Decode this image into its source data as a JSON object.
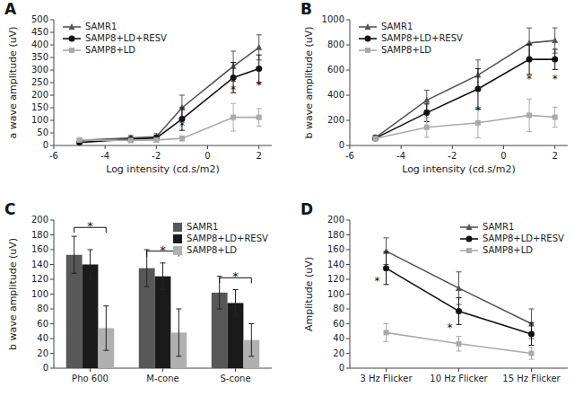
{
  "chart_data": [
    {
      "type": "line",
      "title": "A",
      "x": [
        -5,
        -3,
        -2,
        -1,
        1,
        2
      ],
      "series": [
        {
          "name": "SAMR1",
          "color": "#555555",
          "marker": "triangle",
          "values": [
            20,
            30,
            35,
            150,
            315,
            390
          ],
          "errors": [
            8,
            10,
            12,
            50,
            60,
            50
          ]
        },
        {
          "name": "SAMP8+LD+RESV",
          "color": "#111111",
          "marker": "circle",
          "values": [
            12,
            25,
            30,
            105,
            270,
            305
          ],
          "errors": [
            5,
            8,
            10,
            45,
            60,
            55
          ]
        },
        {
          "name": "SAMP8+LD",
          "color": "#aaaaaa",
          "marker": "square",
          "values": [
            22,
            20,
            22,
            28,
            112,
            112
          ],
          "errors": [
            8,
            8,
            8,
            10,
            55,
            35
          ]
        }
      ],
      "xlabel": "Log intensity (cd.s/m2)",
      "ylabel": "a wave amplitude (uV)",
      "xlim": [
        -6,
        2.5
      ],
      "ylim": [
        0,
        500
      ],
      "xticks": [
        -6,
        -4,
        -2,
        0,
        2
      ],
      "yticks": [
        0,
        50,
        100,
        150,
        200,
        250,
        300,
        350,
        400,
        450,
        500
      ],
      "legend": "upper left",
      "annotations": [
        {
          "text": "*",
          "x": -1,
          "y": 78
        },
        {
          "text": "*",
          "x": 1,
          "y": 220
        },
        {
          "text": "*",
          "x": 2,
          "y": 240
        }
      ]
    },
    {
      "type": "line",
      "title": "B",
      "x": [
        -5,
        -3,
        -1,
        1,
        2
      ],
      "series": [
        {
          "name": "SAMR1",
          "color": "#555555",
          "marker": "triangle",
          "values": [
            62,
            360,
            560,
            815,
            835
          ],
          "errors": [
            20,
            80,
            120,
            120,
            100
          ]
        },
        {
          "name": "SAMP8+LD+RESV",
          "color": "#111111",
          "marker": "circle",
          "values": [
            58,
            260,
            450,
            685,
            685
          ],
          "errors": [
            15,
            70,
            160,
            120,
            80
          ]
        },
        {
          "name": "SAMP8+LD",
          "color": "#aaaaaa",
          "marker": "square",
          "values": [
            55,
            145,
            180,
            240,
            225
          ],
          "errors": [
            15,
            80,
            120,
            130,
            80
          ]
        }
      ],
      "xlabel": "Log intensity (cd.s/m2)",
      "ylabel": "b wave amplitude (uV)",
      "xlim": [
        -6,
        2.5
      ],
      "ylim": [
        0,
        1000
      ],
      "xticks": [
        -6,
        -4,
        -2,
        0,
        2
      ],
      "yticks": [
        0,
        200,
        400,
        600,
        800,
        1000
      ],
      "legend": "upper left",
      "annotations": [
        {
          "text": "*",
          "x": -1,
          "y": 280
        },
        {
          "text": "*",
          "x": 1,
          "y": 530
        },
        {
          "text": "*",
          "x": 2,
          "y": 530
        }
      ]
    },
    {
      "type": "bar",
      "title": "C",
      "categories": [
        "Pho 600",
        "M-cone",
        "S-cone"
      ],
      "series": [
        {
          "name": "SAMR1",
          "color": "#575757",
          "values": [
            153,
            135,
            102
          ],
          "errors": [
            25,
            25,
            22
          ]
        },
        {
          "name": "SAMP8+LD+RESV",
          "color": "#1a1a1a",
          "values": [
            140,
            124,
            88
          ],
          "errors": [
            20,
            18,
            18
          ]
        },
        {
          "name": "SAMP8+LD",
          "color": "#b0b0b0",
          "values": [
            54,
            48,
            38
          ],
          "errors": [
            30,
            32,
            22
          ]
        }
      ],
      "ylabel": "b wave amplitude (uV)",
      "ylim": [
        0,
        200
      ],
      "yticks": [
        0,
        20,
        40,
        60,
        80,
        100,
        120,
        140,
        160,
        180,
        200
      ],
      "legend": "upper right",
      "annotations": [
        {
          "type": "bracket",
          "text": "*",
          "x": 0,
          "y": 190
        },
        {
          "type": "bracket",
          "text": "*",
          "x": 1,
          "y": 158
        },
        {
          "type": "bracket",
          "text": "*",
          "x": 2,
          "y": 122
        }
      ]
    },
    {
      "type": "line",
      "title": "D",
      "categories": [
        "3 Hz Flicker",
        "10 Hz Flicker",
        "15 Hz Flicker"
      ],
      "series": [
        {
          "name": "SAMR1",
          "color": "#555555",
          "marker": "triangle",
          "values": [
            158,
            108,
            60
          ],
          "errors": [
            18,
            22,
            20
          ]
        },
        {
          "name": "SAMP8+LD+RESV",
          "color": "#111111",
          "marker": "circle",
          "values": [
            135,
            77,
            46
          ],
          "errors": [
            22,
            18,
            15
          ]
        },
        {
          "name": "SAMP8+LD",
          "color": "#aaaaaa",
          "marker": "square",
          "values": [
            48,
            33,
            20
          ],
          "errors": [
            12,
            10,
            8
          ]
        }
      ],
      "ylabel": "Amplitude (uV)",
      "ylim": [
        0,
        200
      ],
      "yticks": [
        0,
        20,
        40,
        60,
        80,
        100,
        120,
        140,
        160,
        180,
        200
      ],
      "legend": "upper right",
      "annotations": [
        {
          "text": "*",
          "x": 0,
          "y": 118
        },
        {
          "text": "*",
          "x": 1,
          "y": 55
        }
      ]
    }
  ]
}
